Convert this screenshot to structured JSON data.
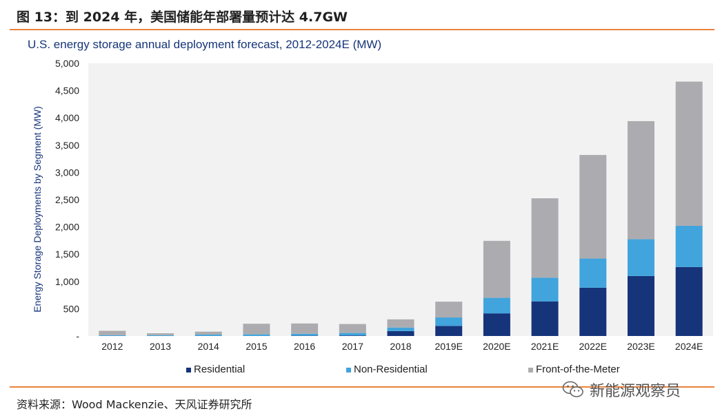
{
  "figure_title": "图 13：到 2024 年，美国储能年部署量预计达 4.7GW",
  "source": "资料来源：Wood Mackenzie、天风证券研究所",
  "watermark": {
    "text": "新能源观察员",
    "icon": "wechat-icon"
  },
  "colors": {
    "residential": "#15347a",
    "non_residential": "#41a4dc",
    "front_of_meter": "#acacb0",
    "plot_bg": "#f2f2f2",
    "rule": "#e9823b",
    "title_blue": "#16347a"
  },
  "chart_data": {
    "type": "bar",
    "stacked": true,
    "title": "U.S. energy storage annual deployment forecast, 2012-2024E (MW)",
    "ylabel": "Energy Storage Deployments by Segment (MW)",
    "xlabel": "",
    "ylim": [
      0,
      5000
    ],
    "yticks": [
      0,
      500,
      1000,
      1500,
      2000,
      2500,
      3000,
      3500,
      4000,
      4500,
      5000
    ],
    "ytick_labels": [
      "-",
      "500",
      "1,000",
      "1,500",
      "2,000",
      "2,500",
      "3,000",
      "3,500",
      "4,000",
      "4,500",
      "5,000"
    ],
    "categories": [
      "2012",
      "2013",
      "2014",
      "2015",
      "2016",
      "2017",
      "2018",
      "2019E",
      "2020E",
      "2021E",
      "2022E",
      "2023E",
      "2024E"
    ],
    "series": [
      {
        "name": "Residential",
        "values": [
          0,
          0,
          0,
          0,
          5,
          10,
          90,
          185,
          415,
          635,
          885,
          1100,
          1265
        ]
      },
      {
        "name": "Non-Residential",
        "values": [
          15,
          15,
          25,
          30,
          35,
          45,
          65,
          155,
          285,
          435,
          535,
          675,
          755
        ]
      },
      {
        "name": "Front-of-the-Meter",
        "values": [
          80,
          35,
          55,
          195,
          190,
          165,
          150,
          290,
          1045,
          1455,
          1900,
          2165,
          2645
        ]
      }
    ],
    "grid": false,
    "legend": "bottom"
  }
}
